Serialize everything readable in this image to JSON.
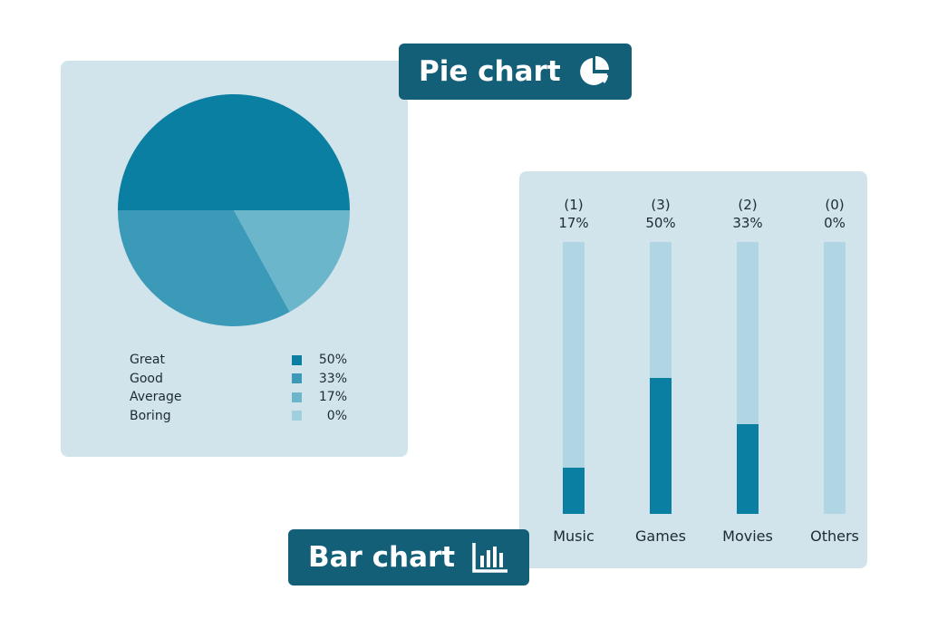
{
  "pie_tag": {
    "label": "Pie chart",
    "icon": "pie-chart-icon"
  },
  "bar_tag": {
    "label": "Bar chart",
    "icon": "bar-chart-icon"
  },
  "colors": {
    "tag_bg": "#135f78",
    "card_bg": "#d1e4eb",
    "track": "#b0d6e3",
    "bar_fill": "#0a7fa2"
  },
  "chart_data": [
    {
      "type": "pie",
      "categories": [
        "Great",
        "Good",
        "Average",
        "Boring"
      ],
      "value_labels": [
        "50%",
        "33%",
        "17%",
        "0%"
      ],
      "values": [
        50,
        33,
        17,
        0
      ],
      "colors": [
        "#0a7fa2",
        "#3a9ab8",
        "#6cb6cc",
        "#a0cfdd"
      ],
      "legend": "bottom"
    },
    {
      "type": "bar",
      "categories": [
        "Music",
        "Games",
        "Movies",
        "Others"
      ],
      "counts": [
        "(1)",
        "(3)",
        "(2)",
        "(0)"
      ],
      "value_labels": [
        "17%",
        "50%",
        "33%",
        "0%"
      ],
      "values": [
        17,
        50,
        33,
        0
      ],
      "ylim": [
        0,
        100
      ]
    }
  ]
}
